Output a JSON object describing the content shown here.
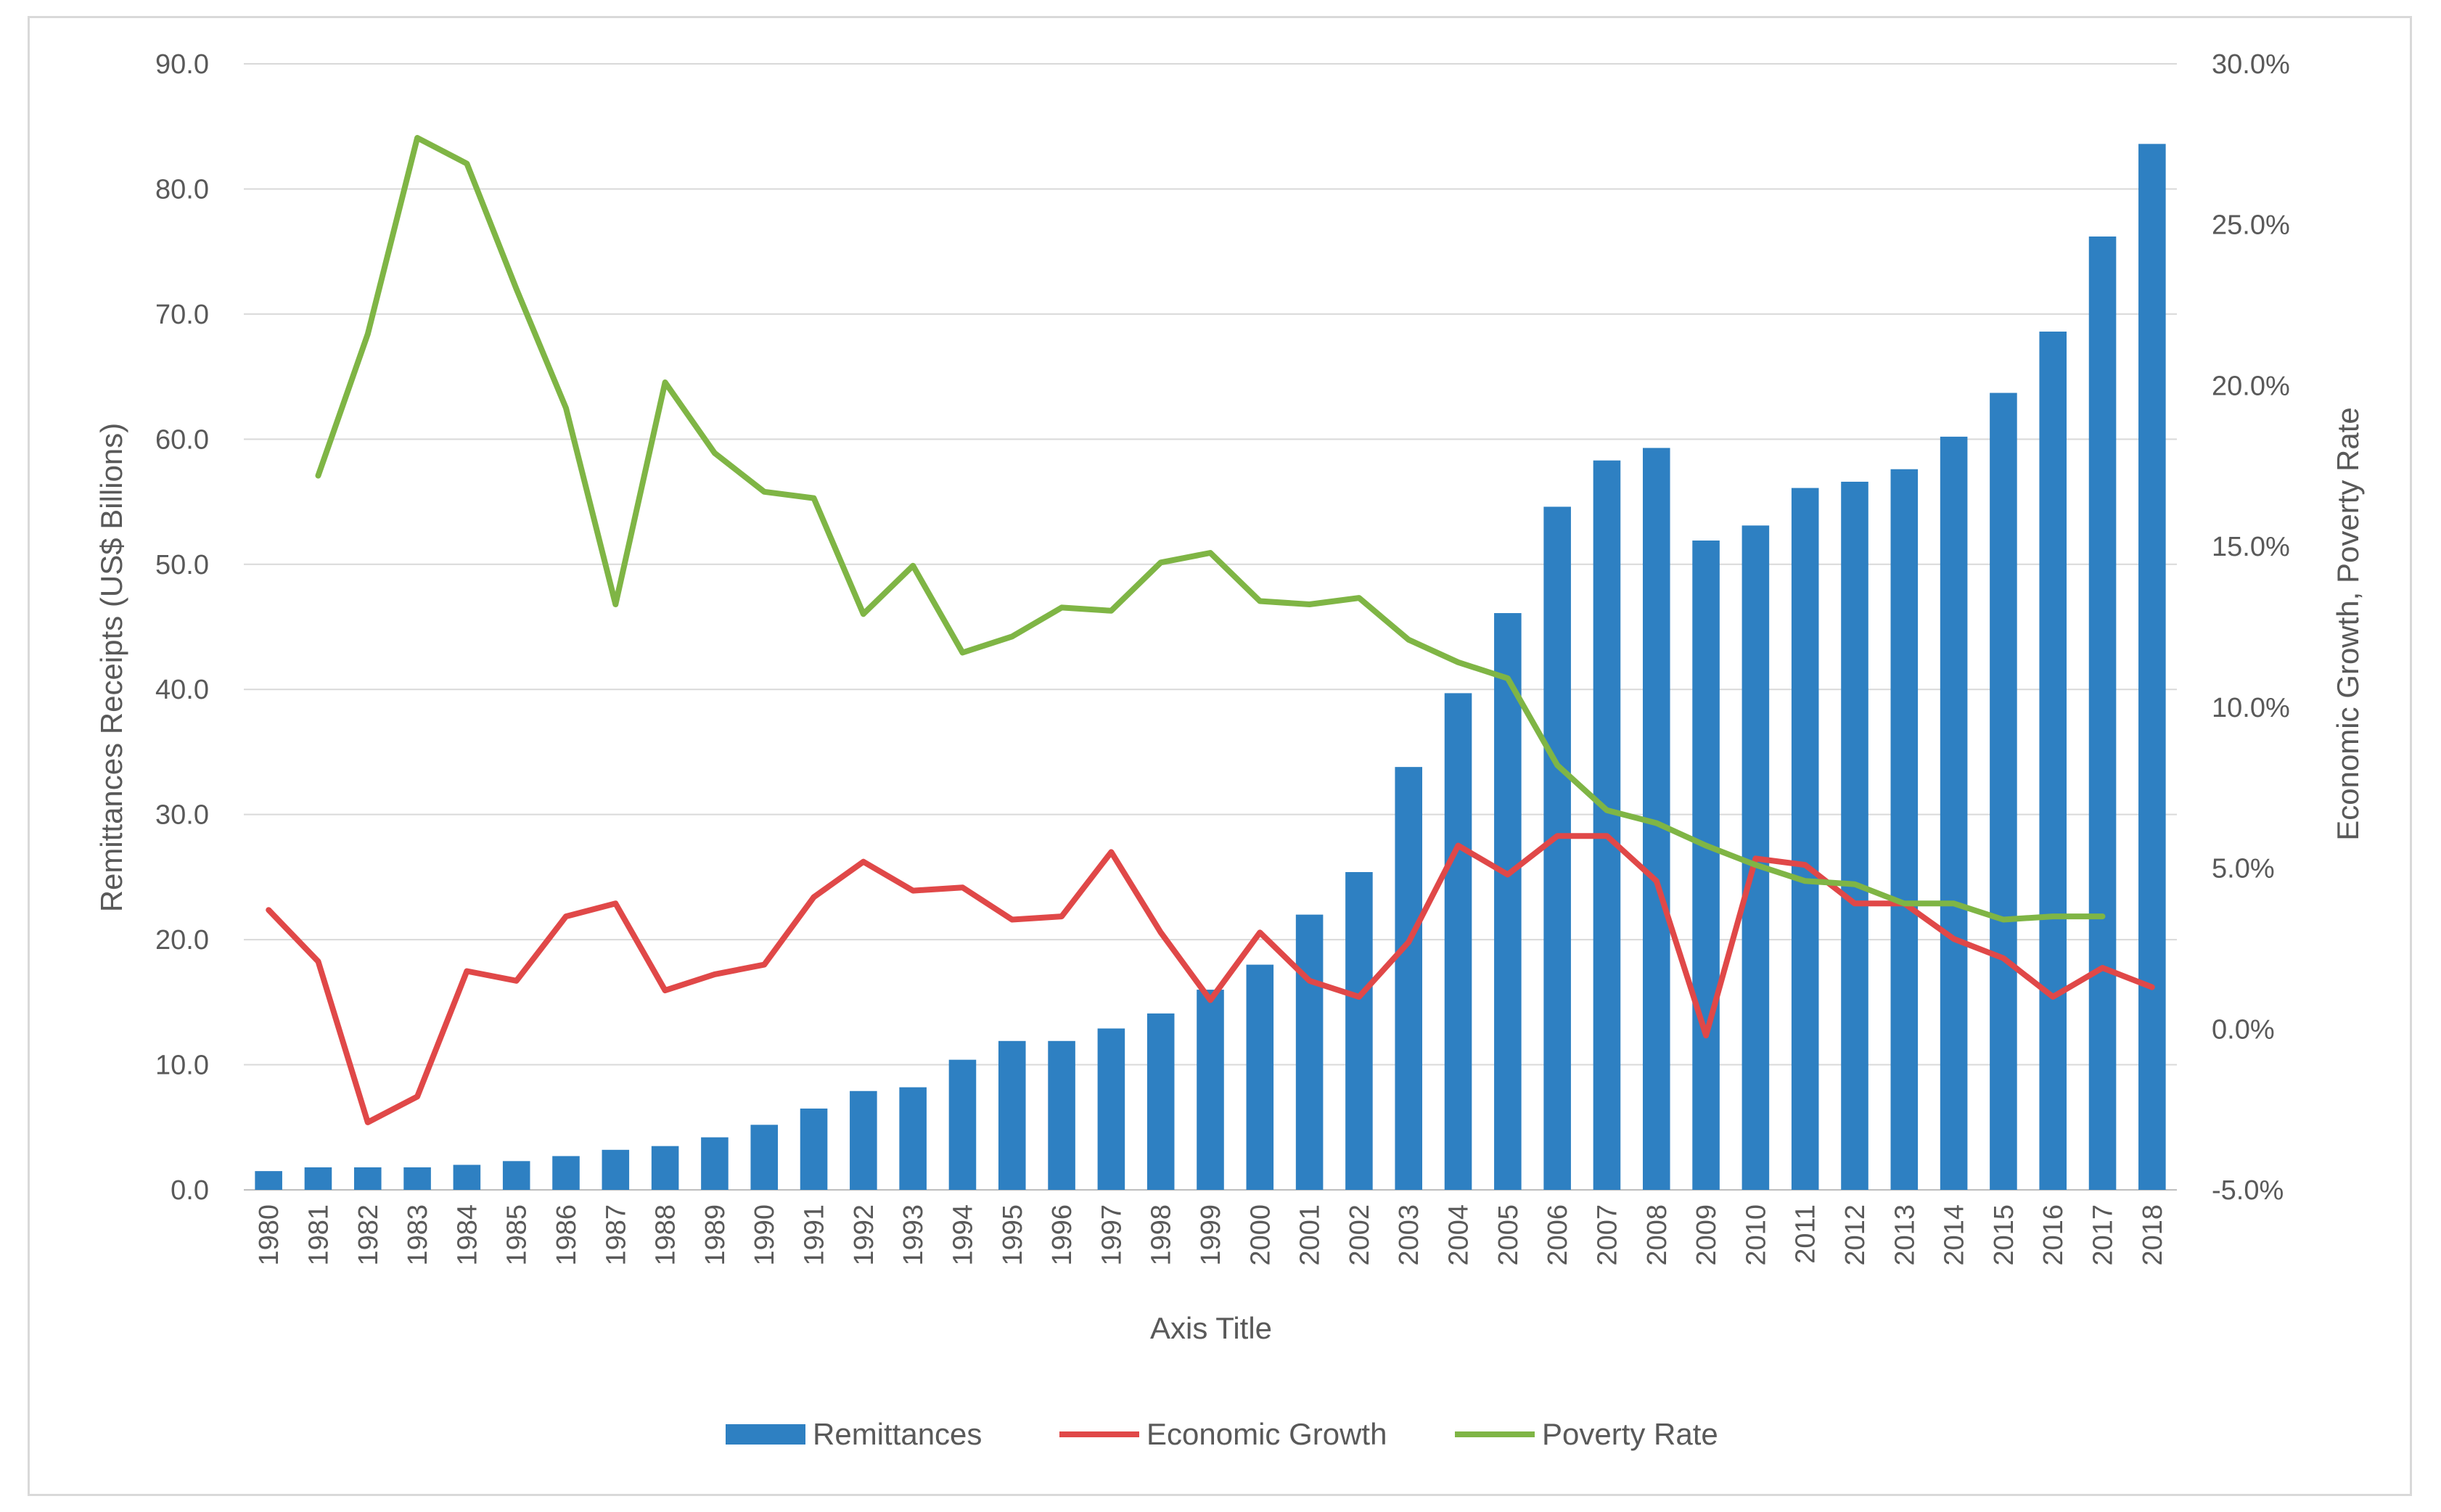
{
  "chart_data": {
    "type": "bar",
    "x": [
      "1980",
      "1981",
      "1982",
      "1983",
      "1984",
      "1985",
      "1986",
      "1987",
      "1988",
      "1989",
      "1990",
      "1991",
      "1992",
      "1993",
      "1994",
      "1995",
      "1996",
      "1997",
      "1998",
      "1999",
      "2000",
      "2001",
      "2002",
      "2003",
      "2004",
      "2005",
      "2006",
      "2007",
      "2008",
      "2009",
      "2010",
      "2011",
      "2012",
      "2013",
      "2014",
      "2015",
      "2016",
      "2017",
      "2018"
    ],
    "title": "",
    "xlabel": "Axis Title",
    "ylabel": "Remittances Receipts (US$ Billions)",
    "y2label": "Economic Growth, Poverty Rate",
    "ylim": [
      0,
      90
    ],
    "y2lim": [
      -5,
      30
    ],
    "yticks": [
      "0.0",
      "10.0",
      "20.0",
      "30.0",
      "40.0",
      "50.0",
      "60.0",
      "70.0",
      "80.0",
      "90.0"
    ],
    "y2ticks": [
      "-5.0%",
      "0.0%",
      "5.0%",
      "10.0%",
      "15.0%",
      "20.0%",
      "25.0%",
      "30.0%"
    ],
    "grid": true,
    "legend_position": "bottom",
    "series": [
      {
        "name": "Remittances",
        "type": "bar",
        "axis": "left",
        "color": "#2e80c2",
        "values": [
          1.5,
          1.8,
          1.8,
          1.8,
          2.0,
          2.3,
          2.7,
          3.2,
          3.5,
          4.2,
          5.2,
          6.5,
          7.9,
          8.2,
          10.4,
          11.9,
          11.9,
          12.9,
          14.1,
          16.0,
          18.0,
          22.0,
          25.4,
          33.8,
          39.7,
          46.1,
          54.6,
          58.3,
          59.3,
          51.9,
          53.1,
          56.1,
          56.6,
          57.6,
          60.2,
          63.7,
          68.6,
          76.2,
          83.6
        ]
      },
      {
        "name": "Economic Growth",
        "type": "line",
        "axis": "right",
        "color": "#e04848",
        "values": [
          3.7,
          2.1,
          -2.9,
          -2.1,
          1.8,
          1.5,
          3.5,
          3.9,
          1.2,
          1.7,
          2.0,
          4.1,
          5.2,
          4.3,
          4.4,
          3.4,
          3.5,
          5.5,
          3.0,
          0.9,
          3.0,
          1.5,
          1.0,
          2.7,
          5.7,
          4.8,
          6.0,
          6.0,
          4.6,
          -0.2,
          5.3,
          5.1,
          3.9,
          3.9,
          2.8,
          2.2,
          1.0,
          1.9,
          1.3
        ]
      },
      {
        "name": "Poverty Rate",
        "type": "line",
        "axis": "right",
        "color": "#7fb545",
        "values": [
          null,
          17.2,
          21.6,
          27.7,
          26.9,
          23.0,
          19.3,
          13.2,
          20.1,
          17.9,
          16.7,
          16.5,
          12.9,
          14.4,
          11.7,
          12.2,
          13.1,
          13.0,
          14.5,
          14.8,
          13.3,
          13.2,
          13.4,
          12.1,
          11.4,
          10.9,
          8.2,
          6.8,
          6.4,
          5.7,
          5.1,
          4.6,
          4.5,
          3.9,
          3.9,
          3.4,
          3.5,
          3.5,
          null
        ]
      }
    ]
  }
}
